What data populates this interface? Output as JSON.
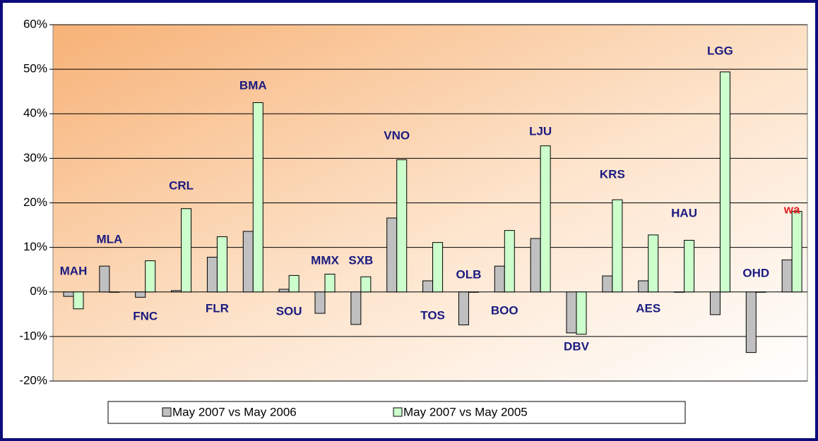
{
  "chart_data": {
    "type": "bar",
    "categories": [
      "MAH",
      "MLA",
      "FNC",
      "CRL",
      "FLR",
      "BMA",
      "SOU",
      "MMX",
      "SXB",
      "VNO",
      "TOS",
      "OLB",
      "BOO",
      "LJU",
      "DBV",
      "KRS",
      "AES",
      "HAU",
      "LGG",
      "OHD",
      "wa"
    ],
    "category_label_colors": [
      "#1a1a80",
      "#1a1a80",
      "#1a1a80",
      "#1a1a80",
      "#1a1a80",
      "#1a1a80",
      "#1a1a80",
      "#1a1a80",
      "#1a1a80",
      "#1a1a80",
      "#1a1a80",
      "#1a1a80",
      "#1a1a80",
      "#1a1a80",
      "#1a1a80",
      "#1a1a80",
      "#1a1a80",
      "#1a1a80",
      "#1a1a80",
      "#1a1a80",
      "#e02020"
    ],
    "series": [
      {
        "name": "May 2007 vs May 2006",
        "color": "#c0c0c0",
        "values": [
          -1,
          5.8,
          -1.2,
          0.3,
          7.8,
          13.6,
          0.6,
          -4.8,
          -7.3,
          16.6,
          2.5,
          -7.4,
          5.8,
          12,
          -9.2,
          3.6,
          2.5,
          0,
          -5.1,
          -13.6,
          7.2
        ]
      },
      {
        "name": "May 2007 vs May 2005",
        "color": "#ccffcc",
        "values": [
          -3.8,
          0,
          7,
          18.7,
          12.4,
          42.5,
          3.7,
          4,
          3.4,
          29.7,
          11.1,
          0,
          13.8,
          32.8,
          -9.5,
          20.7,
          12.8,
          11.6,
          49.4,
          0,
          18.1
        ]
      }
    ],
    "ylim": [
      -20,
      60
    ],
    "yticks": [
      {
        "value": -20,
        "label": "-20%"
      },
      {
        "value": -10,
        "label": "-10%"
      },
      {
        "value": 0,
        "label": "0%"
      },
      {
        "value": 10,
        "label": "10%"
      },
      {
        "value": 20,
        "label": "20%"
      },
      {
        "value": 30,
        "label": "30%"
      },
      {
        "value": 40,
        "label": "40%"
      },
      {
        "value": 50,
        "label": "50%"
      },
      {
        "value": 60,
        "label": "60%"
      }
    ],
    "grid": true,
    "legend": "bottom"
  }
}
